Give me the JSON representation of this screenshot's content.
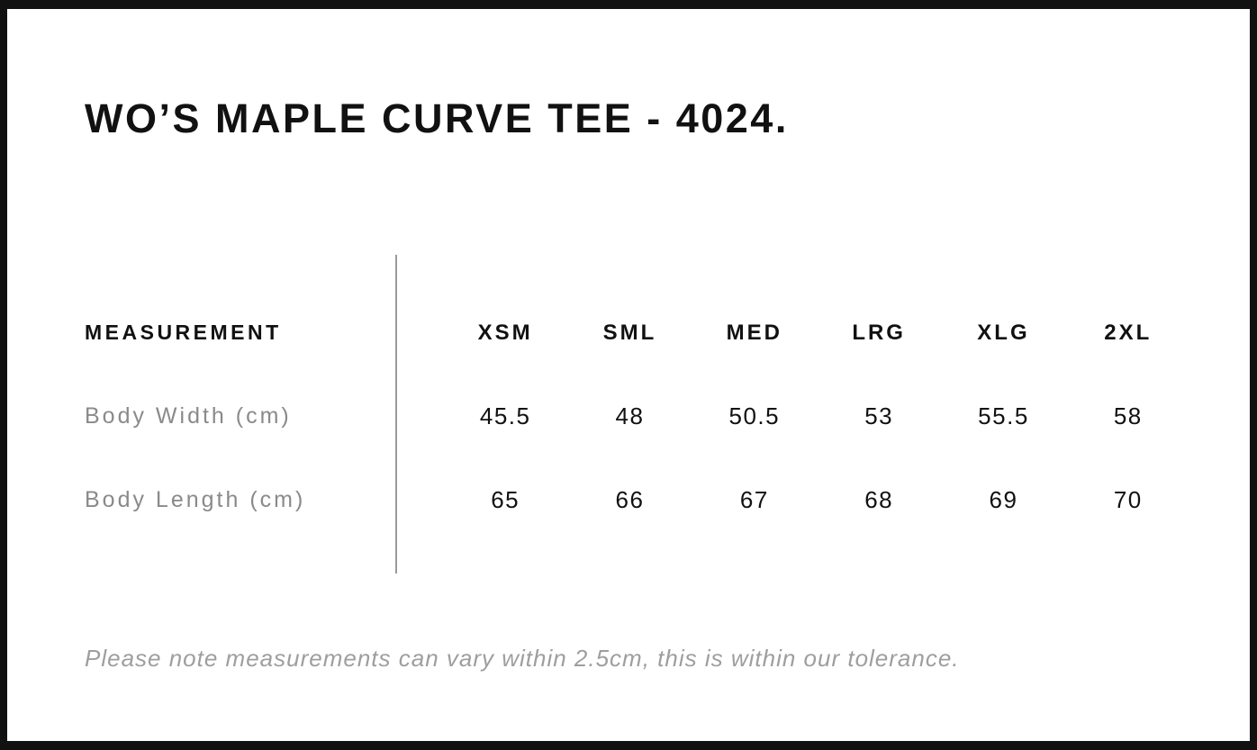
{
  "chart_data": {
    "type": "table",
    "title": "WO’S MAPLE CURVE TEE - 4024.",
    "columns": [
      "MEASUREMENT",
      "XSM",
      "SML",
      "MED",
      "LRG",
      "XLG",
      "2XL"
    ],
    "rows": [
      {
        "label": "Body Width (cm)",
        "values": [
          45.5,
          48,
          50.5,
          53,
          55.5,
          58
        ]
      },
      {
        "label": "Body Length (cm)",
        "values": [
          65,
          66,
          67,
          68,
          69,
          70
        ]
      }
    ],
    "footnote": "Please note measurements can vary within 2.5cm, this is within our tolerance.",
    "layout_hints": {
      "grid": "off",
      "label_column_divider": "vertical-line"
    }
  },
  "colors": {
    "text_black": "#111111",
    "row_label_gray": "#8a8a8a",
    "footnote_gray": "#9e9e9e",
    "divider_gray": "#9a9a9a",
    "frame_border": "#111111",
    "background": "#ffffff"
  }
}
